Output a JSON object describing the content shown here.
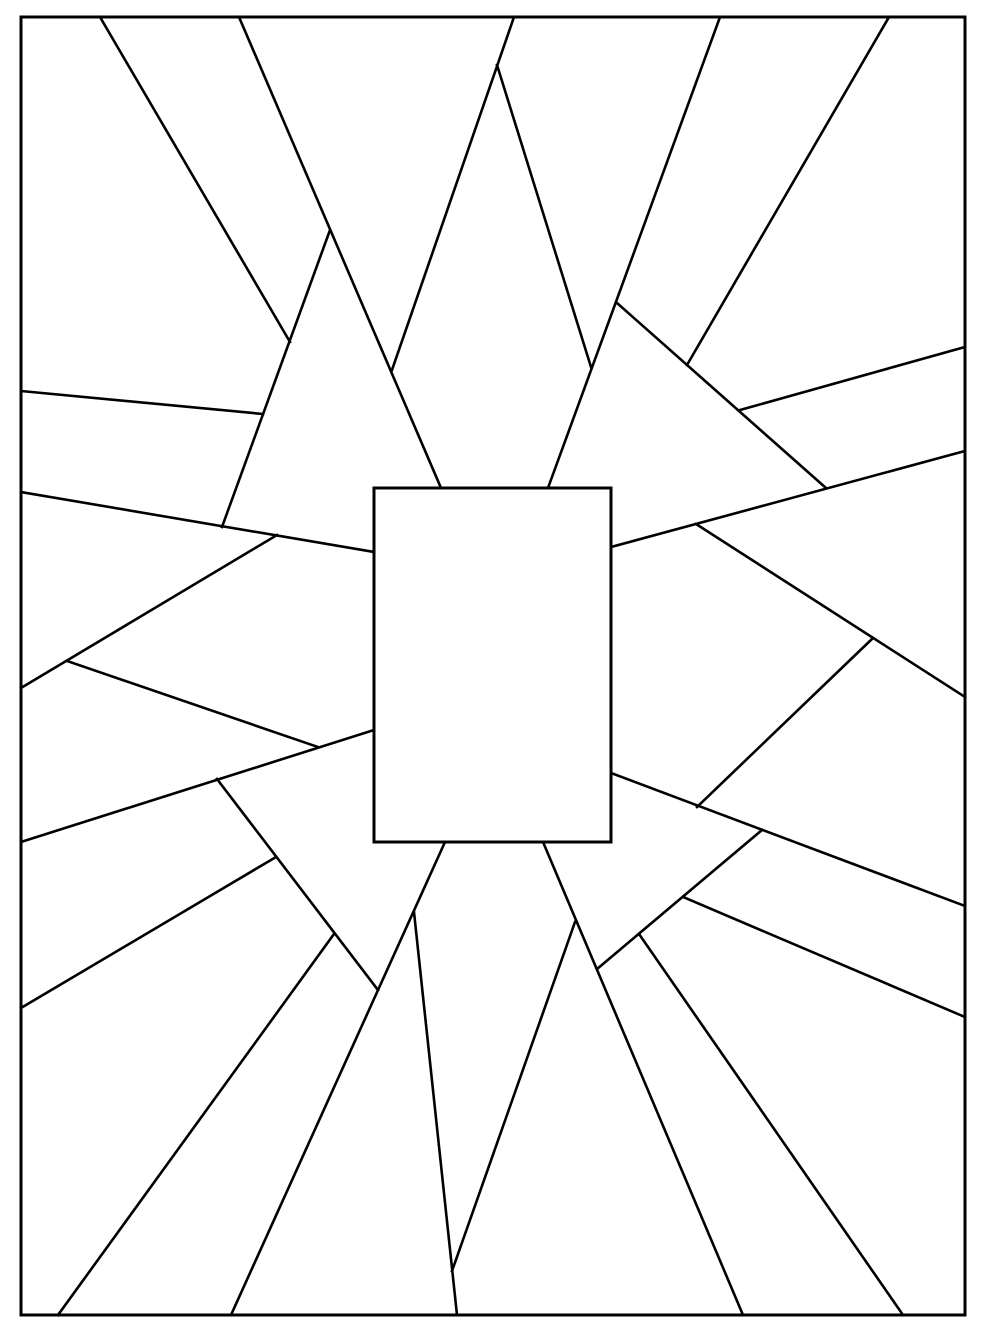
{
  "style": {
    "stroke_color": "#000000",
    "fill_color": "#ffffff",
    "background_color": "#ffffff"
  },
  "shapes": {
    "outer_frame": "rectangle",
    "center_panel": "rectangle",
    "segments": "radiating-lines"
  }
}
